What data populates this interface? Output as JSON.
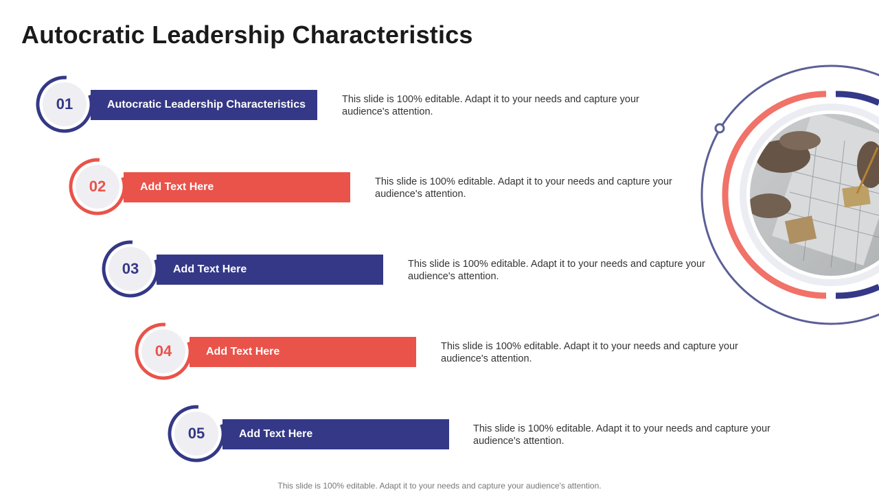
{
  "title": "Autocratic Leadership Characteristics",
  "colors": {
    "navy": "#343886",
    "coral": "#e9534a",
    "ring_gray": "#efeff3"
  },
  "steps": [
    {
      "number": "01",
      "label": "Autocratic Leadership Characteristics",
      "description": "This slide is 100% editable. Adapt it to your needs and capture your audience's attention.",
      "color": "navy"
    },
    {
      "number": "02",
      "label": "Add Text Here",
      "description": "This slide is 100% editable. Adapt it to your needs and capture your audience's attention.",
      "color": "coral"
    },
    {
      "number": "03",
      "label": "Add Text Here",
      "description": "This slide is 100% editable. Adapt it to your needs and capture your audience's attention.",
      "color": "navy"
    },
    {
      "number": "04",
      "label": "Add Text Here",
      "description": "This slide is 100% editable. Adapt it to your needs and capture your audience's attention.",
      "color": "coral"
    },
    {
      "number": "05",
      "label": "Add Text Here",
      "description": "This slide is 100% editable. Adapt it to your needs and capture your audience's attention.",
      "color": "navy"
    }
  ],
  "photo": {
    "subject": "people-reviewing-blueprints"
  },
  "footer": "This slide is 100% editable. Adapt it to your needs and capture your audience's attention."
}
